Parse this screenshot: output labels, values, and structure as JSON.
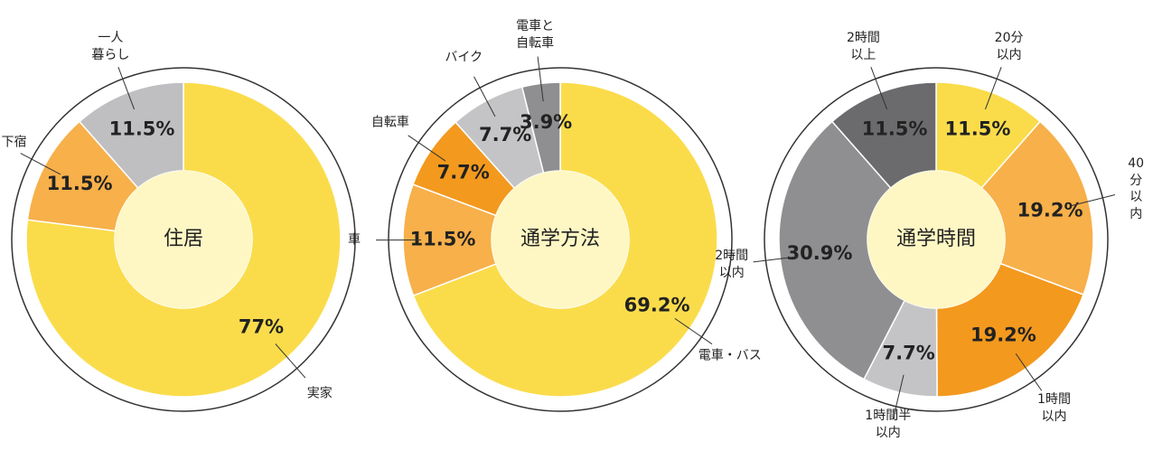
{
  "chart_data": [
    {
      "type": "donut",
      "title": "住居",
      "categories": [
        "実家",
        "寮・下宿",
        "一人\n暮らし"
      ],
      "values": [
        77,
        11.5,
        11.5
      ],
      "value_labels": [
        "77%",
        "11.5%",
        "11.5%"
      ],
      "colors": [
        "#fadc4b",
        "#f7b04a",
        "#bfbfc2"
      ]
    },
    {
      "type": "donut",
      "title": "通学方法",
      "categories": [
        "電車・バス",
        "車",
        "自転車",
        "バイク",
        "電車と\n自転車"
      ],
      "values": [
        69.2,
        11.5,
        7.7,
        7.7,
        3.9
      ],
      "value_labels": [
        "69.2%",
        "11.5%",
        "7.7%",
        "7.7%",
        "3.9%"
      ],
      "colors": [
        "#fadc4b",
        "#f7b04a",
        "#f3991e",
        "#c4c4c6",
        "#8f8f91"
      ]
    },
    {
      "type": "donut",
      "title": "通学時間",
      "categories": [
        "20分\n以内",
        "40分\n以内",
        "1時間\n以内",
        "1時間半\n以内",
        "2時間\n以内",
        "2時間\n以上"
      ],
      "values": [
        11.5,
        19.2,
        19.2,
        7.7,
        30.9,
        11.5
      ],
      "value_labels": [
        "11.5%",
        "19.2%",
        "19.2%",
        "7.7%",
        "30.9%",
        "11.5%"
      ],
      "colors": [
        "#fadc4b",
        "#f7b04a",
        "#f3991e",
        "#c4c4c6",
        "#8f8f91",
        "#6b6b6d"
      ]
    }
  ]
}
